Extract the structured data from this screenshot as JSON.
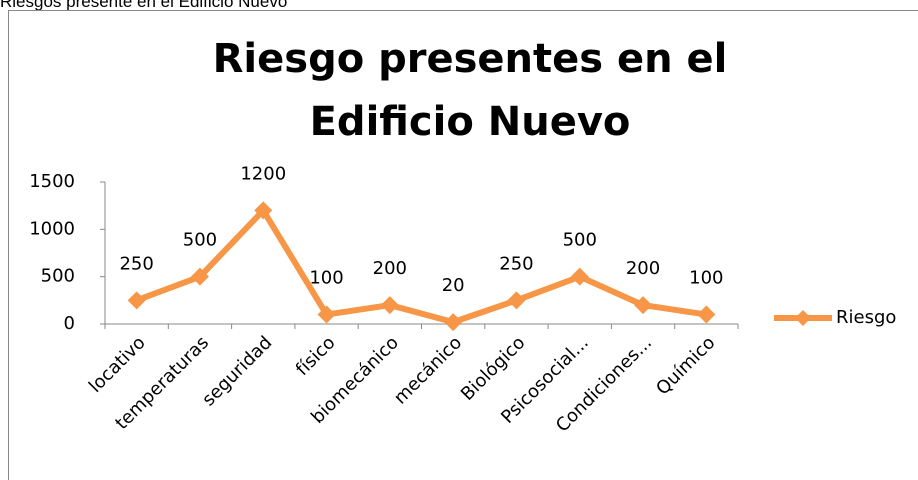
{
  "caption": "Riesgos presente en el Edificio Nuevo",
  "chart_data": {
    "type": "line",
    "title": "Riesgo presentes en el Edificio Nuevo",
    "categories": [
      "locativo",
      "temperaturas",
      "seguridad",
      "físico",
      "biomecánico",
      "mecánico",
      "Biológico",
      "Psicosocial...",
      "Condiciones...",
      "Químico"
    ],
    "series": [
      {
        "name": "Riesgo",
        "color": "#f79646",
        "values": [
          250,
          500,
          1200,
          100,
          200,
          20,
          250,
          500,
          200,
          100
        ]
      }
    ],
    "ylim": [
      0,
      1500
    ],
    "yticks": [
      0,
      500,
      1000,
      1500
    ],
    "grid": false,
    "legend": "right"
  }
}
